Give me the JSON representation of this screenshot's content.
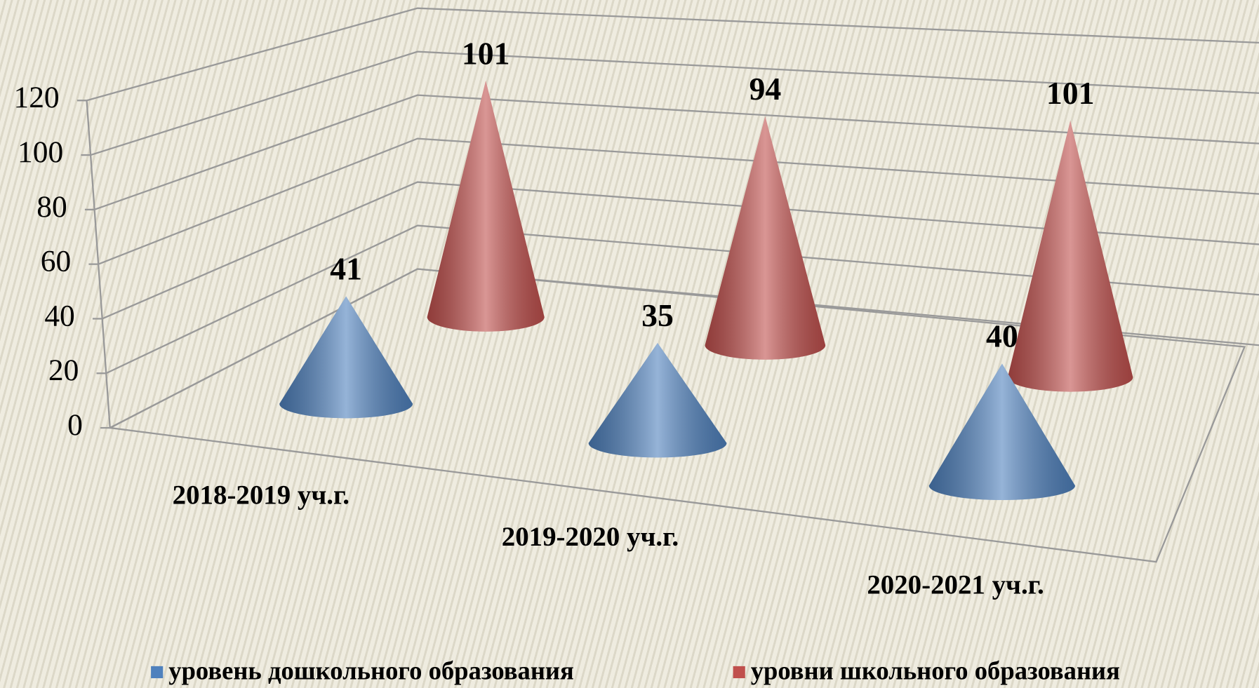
{
  "chart_data": {
    "type": "cone3d",
    "categories": [
      "2018-2019 уч.г.",
      "2019-2020 уч.г.",
      "2020-2021 уч.г."
    ],
    "series": [
      {
        "name": "уровень дошкольного образования",
        "color": "#4f81bd",
        "values": [
          41,
          35,
          40
        ]
      },
      {
        "name": "уровни школьного образования",
        "color": "#c0504d",
        "values": [
          101,
          94,
          101
        ]
      }
    ],
    "ylim": [
      0,
      120
    ],
    "yticks": [
      0,
      20,
      40,
      60,
      80,
      100,
      120
    ],
    "grid": true,
    "legend": "bottom"
  }
}
